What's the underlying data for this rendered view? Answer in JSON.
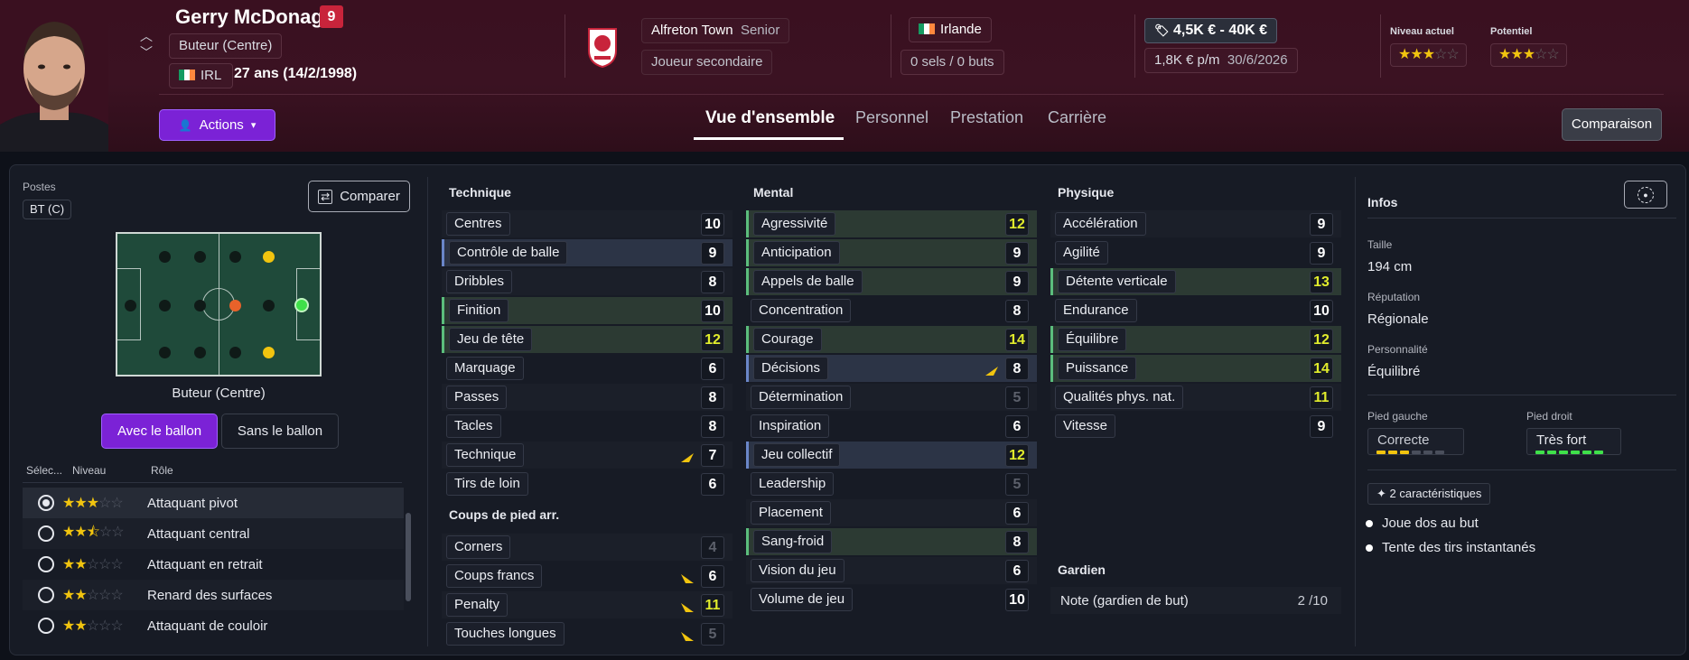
{
  "player": {
    "name": "Gerry McDonagh",
    "number": "9",
    "position": "Buteur (Centre)",
    "nationality_code": "IRL",
    "age": "27 ans (14/2/1998)"
  },
  "club": {
    "name": "Alfreton Town",
    "squad": "Senior",
    "role": "Joueur secondaire"
  },
  "country": {
    "name": "Irlande",
    "caps": "0 sels / 0 buts"
  },
  "value": {
    "range": "4,5K € - 40K €",
    "wage": "1,8K € p/m",
    "contract_end": "30/6/2026"
  },
  "ratings": {
    "current_label": "Niveau actuel",
    "potential_label": "Potentiel",
    "current_stars": 3,
    "potential_stars": 3
  },
  "actions_label": "Actions",
  "tabs": [
    {
      "label": "Vue d'ensemble"
    },
    {
      "label": "Personnel"
    },
    {
      "label": "Prestation"
    },
    {
      "label": "Carrière"
    }
  ],
  "compare_header": "Comparaison",
  "positions": {
    "label": "Postes",
    "code": "BT (C)",
    "compare_button": "Comparer",
    "role_caption": "Buteur (Centre)",
    "with_ball": "Avec le ballon",
    "without_ball": "Sans le ballon"
  },
  "roles_table": {
    "col_select": "Sélec...",
    "col_level": "Niveau",
    "col_role": "Rôle",
    "rows": [
      {
        "name": "Attaquant pivot",
        "stars": 3,
        "selected": true
      },
      {
        "name": "Attaquant central",
        "stars": 2.5,
        "selected": false
      },
      {
        "name": "Attaquant en retrait",
        "stars": 2,
        "selected": false
      },
      {
        "name": "Renard des surfaces",
        "stars": 2,
        "selected": false
      },
      {
        "name": "Attaquant de couloir",
        "stars": 2,
        "selected": false
      }
    ]
  },
  "technique": {
    "title": "Technique",
    "attributes": [
      {
        "name": "Centres",
        "value": "10"
      },
      {
        "name": "Contrôle de balle",
        "value": "9"
      },
      {
        "name": "Dribbles",
        "value": "8"
      },
      {
        "name": "Finition",
        "value": "10"
      },
      {
        "name": "Jeu de tête",
        "value": "12"
      },
      {
        "name": "Marquage",
        "value": "6"
      },
      {
        "name": "Passes",
        "value": "8"
      },
      {
        "name": "Tacles",
        "value": "8"
      },
      {
        "name": "Technique",
        "value": "7"
      },
      {
        "name": "Tirs de loin",
        "value": "6"
      }
    ]
  },
  "set_pieces": {
    "title": "Coups de pied arr.",
    "attributes": [
      {
        "name": "Corners",
        "value": "4"
      },
      {
        "name": "Coups francs",
        "value": "6"
      },
      {
        "name": "Penalty",
        "value": "11"
      },
      {
        "name": "Touches longues",
        "value": "5"
      }
    ]
  },
  "mental": {
    "title": "Mental",
    "attributes": [
      {
        "name": "Agressivité",
        "value": "12"
      },
      {
        "name": "Anticipation",
        "value": "9"
      },
      {
        "name": "Appels de balle",
        "value": "9"
      },
      {
        "name": "Concentration",
        "value": "8"
      },
      {
        "name": "Courage",
        "value": "14"
      },
      {
        "name": "Décisions",
        "value": "8"
      },
      {
        "name": "Détermination",
        "value": "5"
      },
      {
        "name": "Inspiration",
        "value": "6"
      },
      {
        "name": "Jeu collectif",
        "value": "12"
      },
      {
        "name": "Leadership",
        "value": "5"
      },
      {
        "name": "Placement",
        "value": "6"
      },
      {
        "name": "Sang-froid",
        "value": "8"
      },
      {
        "name": "Vision du jeu",
        "value": "6"
      },
      {
        "name": "Volume de jeu",
        "value": "10"
      }
    ]
  },
  "physical": {
    "title": "Physique",
    "attributes": [
      {
        "name": "Accélération",
        "value": "9"
      },
      {
        "name": "Agilité",
        "value": "9"
      },
      {
        "name": "Détente verticale",
        "value": "13"
      },
      {
        "name": "Endurance",
        "value": "10"
      },
      {
        "name": "Équilibre",
        "value": "12"
      },
      {
        "name": "Puissance",
        "value": "14"
      },
      {
        "name": "Qualités phys. nat.",
        "value": "11"
      },
      {
        "name": "Vitesse",
        "value": "9"
      }
    ]
  },
  "goalkeeper": {
    "title": "Gardien",
    "label": "Note (gardien de but)",
    "value": "2 /10"
  },
  "info": {
    "title": "Infos",
    "height_label": "Taille",
    "height": "194 cm",
    "reputation_label": "Réputation",
    "reputation": "Régionale",
    "personality_label": "Personnalité",
    "personality": "Équilibré",
    "left_foot_label": "Pied gauche",
    "left_foot": "Correcte",
    "right_foot_label": "Pied droit",
    "right_foot": "Très fort",
    "left_foot_level": 3,
    "right_foot_level": 6,
    "traits_label": "2 caractéristiques",
    "traits": [
      "Joue dos au but",
      "Tente des tirs instantanés"
    ]
  },
  "colors": {
    "accent": "#7b22d6",
    "highlight_yellow": "#e1ec2c",
    "star": "#f1c40f",
    "header_bg": "#3a1020"
  }
}
